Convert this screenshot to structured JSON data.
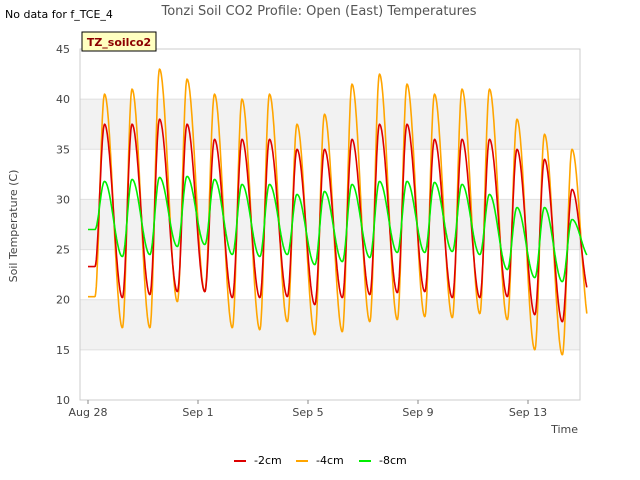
{
  "no_data_text": "No data for f_TCE_4",
  "badge_label": "TZ_soilco2",
  "chart_data": {
    "type": "line",
    "title": "Tonzi Soil CO2 Profile: Open (East) Temperatures",
    "xlabel": "Time",
    "ylabel": "Soil Temperature (C)",
    "ylim": [
      10,
      45
    ],
    "yticks": [
      10,
      15,
      20,
      25,
      30,
      35,
      40,
      45
    ],
    "xlim": [
      0,
      18.15
    ],
    "xticks": [
      {
        "value": 0,
        "label": "Aug 28"
      },
      {
        "value": 4,
        "label": "Sep 1"
      },
      {
        "value": 8,
        "label": "Sep 5"
      },
      {
        "value": 12,
        "label": "Sep 9"
      },
      {
        "value": 16,
        "label": "Sep 13"
      }
    ],
    "x_unit": "days since Aug 28",
    "grid": "horizontal bands",
    "legend_position": "bottom",
    "series": [
      {
        "name": "-2cm",
        "color": "#dd0000",
        "day_max": [
          37.5,
          37.5,
          38,
          37.5,
          36,
          36,
          36,
          35,
          35,
          36,
          37.5,
          37.5,
          36,
          36,
          36,
          35,
          34,
          31
        ],
        "night_min": [
          23.3,
          20.2,
          20.5,
          20.8,
          20.8,
          20.2,
          20.2,
          20.3,
          19.5,
          20.2,
          20.5,
          20.7,
          20.8,
          20.2,
          20.2,
          20.3,
          18.5,
          17.8,
          20.5
        ]
      },
      {
        "name": "-4cm",
        "color": "#ffa500",
        "day_max": [
          40.5,
          41,
          43,
          42,
          40.5,
          40,
          40.5,
          37.5,
          38.5,
          41.5,
          42.5,
          41.5,
          40.5,
          41,
          41,
          38,
          36.5,
          35
        ],
        "night_min": [
          20.3,
          17.2,
          17.2,
          19.8,
          20.8,
          17.2,
          17,
          17.8,
          16.5,
          16.8,
          17.8,
          18,
          18.3,
          18.2,
          18.6,
          18,
          15,
          14.5,
          17.4
        ]
      },
      {
        "name": "-8cm",
        "color": "#00ee00",
        "day_max": [
          31.8,
          32,
          32.2,
          32.3,
          32,
          31.5,
          31.5,
          30.5,
          30.8,
          31.5,
          31.8,
          31.8,
          31.7,
          31.5,
          30.5,
          29.2,
          29.2,
          28
        ],
        "night_min": [
          27,
          24.3,
          24.5,
          25.3,
          25.5,
          24.5,
          24.3,
          24.5,
          23.5,
          23.8,
          24.2,
          24.7,
          24.7,
          24.8,
          24.5,
          23,
          22.2,
          21.8,
          24.2
        ]
      }
    ]
  }
}
